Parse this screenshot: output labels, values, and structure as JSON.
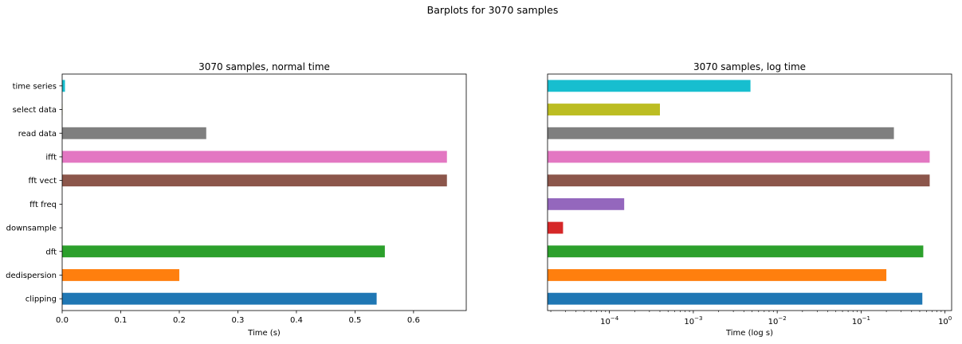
{
  "figure": {
    "suptitle": "Barplots for 3070 samples"
  },
  "chart_data": [
    {
      "type": "bar",
      "orientation": "horizontal",
      "title": "3070 samples, normal time",
      "xlabel": "Time (s)",
      "ylabel": "",
      "xscale": "linear",
      "xlim": [
        0,
        0.69
      ],
      "xticks": [
        0.0,
        0.1,
        0.2,
        0.3,
        0.4,
        0.5,
        0.6
      ],
      "xtick_labels": [
        "0.0",
        "0.1",
        "0.2",
        "0.3",
        "0.4",
        "0.5",
        "0.6"
      ],
      "categories": [
        "clipping",
        "dedispersion",
        "dft",
        "downsample",
        "fft freq",
        "fft vect",
        "ifft",
        "read data",
        "select data",
        "time series"
      ],
      "values": [
        0.537,
        0.2,
        0.551,
        2.8e-05,
        0.00015,
        0.657,
        0.657,
        0.246,
        0.0004,
        0.0048
      ],
      "colors": [
        "#1f77b4",
        "#ff7f0e",
        "#2ca02c",
        "#d62728",
        "#9467bd",
        "#8c564b",
        "#e377c2",
        "#7f7f7f",
        "#bcbd22",
        "#17becf"
      ],
      "grid": false,
      "legend": "none"
    },
    {
      "type": "bar",
      "orientation": "horizontal",
      "title": "3070 samples, log time",
      "xlabel": "Time (log s)",
      "ylabel": "",
      "xscale": "log",
      "xlim": [
        1.83e-05,
        1.2
      ],
      "xticks": [
        0.0001,
        0.001,
        0.01,
        0.1,
        1
      ],
      "xtick_labels": [
        {
          "base": "10",
          "exp": "−4"
        },
        {
          "base": "10",
          "exp": "−3"
        },
        {
          "base": "10",
          "exp": "−2"
        },
        {
          "base": "10",
          "exp": "−1"
        },
        {
          "base": "10",
          "exp": "0"
        }
      ],
      "categories": [
        "clipping",
        "dedispersion",
        "dft",
        "downsample",
        "fft freq",
        "fft vect",
        "ifft",
        "read data",
        "select data",
        "time series"
      ],
      "values": [
        0.537,
        0.2,
        0.551,
        2.8e-05,
        0.00015,
        0.657,
        0.657,
        0.246,
        0.0004,
        0.0048
      ],
      "colors": [
        "#1f77b4",
        "#ff7f0e",
        "#2ca02c",
        "#d62728",
        "#9467bd",
        "#8c564b",
        "#e377c2",
        "#7f7f7f",
        "#bcbd22",
        "#17becf"
      ],
      "show_category_labels": false,
      "grid": false,
      "legend": "none"
    }
  ]
}
